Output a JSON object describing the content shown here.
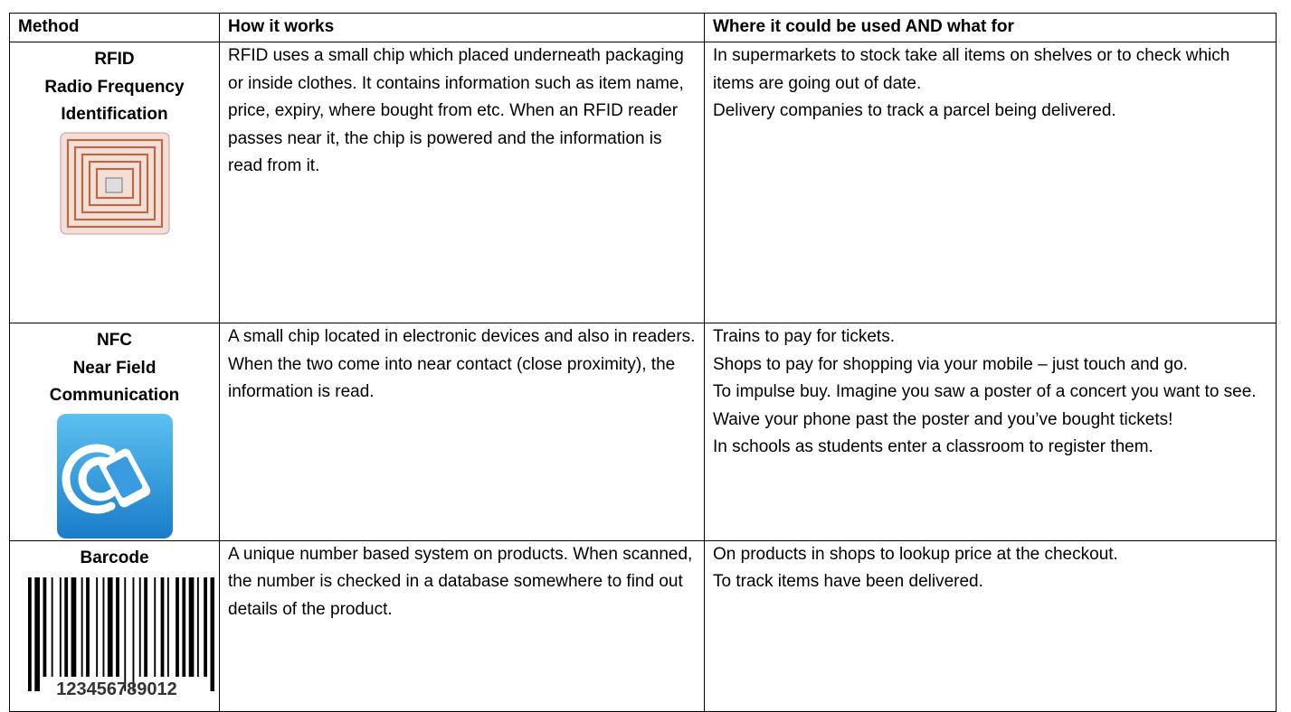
{
  "table": {
    "header": [
      "Method",
      "How it works",
      "Where it could be used AND what for"
    ],
    "rows": [
      {
        "method": [
          "RFID",
          "Radio Frequency",
          "Identification"
        ],
        "how": [
          "RFID uses a small chip which placed underneath packaging or inside clothes. It contains information such as item name, price, expiry, where bought from etc.  When an RFID reader passes near it, the chip is powered and the information is read from it."
        ],
        "where": [
          "In supermarkets to stock take all items on shelves or to check which items are going out of date.",
          "Delivery companies to track a parcel being delivered."
        ]
      },
      {
        "method": [
          "NFC",
          "Near Field",
          "Communication"
        ],
        "how": [
          "A small chip located in electronic devices and also in readers. When the two come into near contact (close proximity), the information is read."
        ],
        "where": [
          "Trains to pay for tickets.",
          "Shops to pay for shopping via your mobile – just touch and go.",
          "To impulse buy. Imagine you saw a poster of a concert you want to see. Waive your phone past the poster and you’ve bought tickets!",
          "In schools as students enter a classroom to register them."
        ]
      },
      {
        "method": [
          "Barcode"
        ],
        "how": [
          "A unique number based system on products. When scanned, the number is checked in a database somewhere to find out details of the product."
        ],
        "where": [
          "On products in shops to lookup price at the checkout.",
          "To track items have been delivered."
        ]
      }
    ],
    "barcode_digits": "123456789012"
  }
}
